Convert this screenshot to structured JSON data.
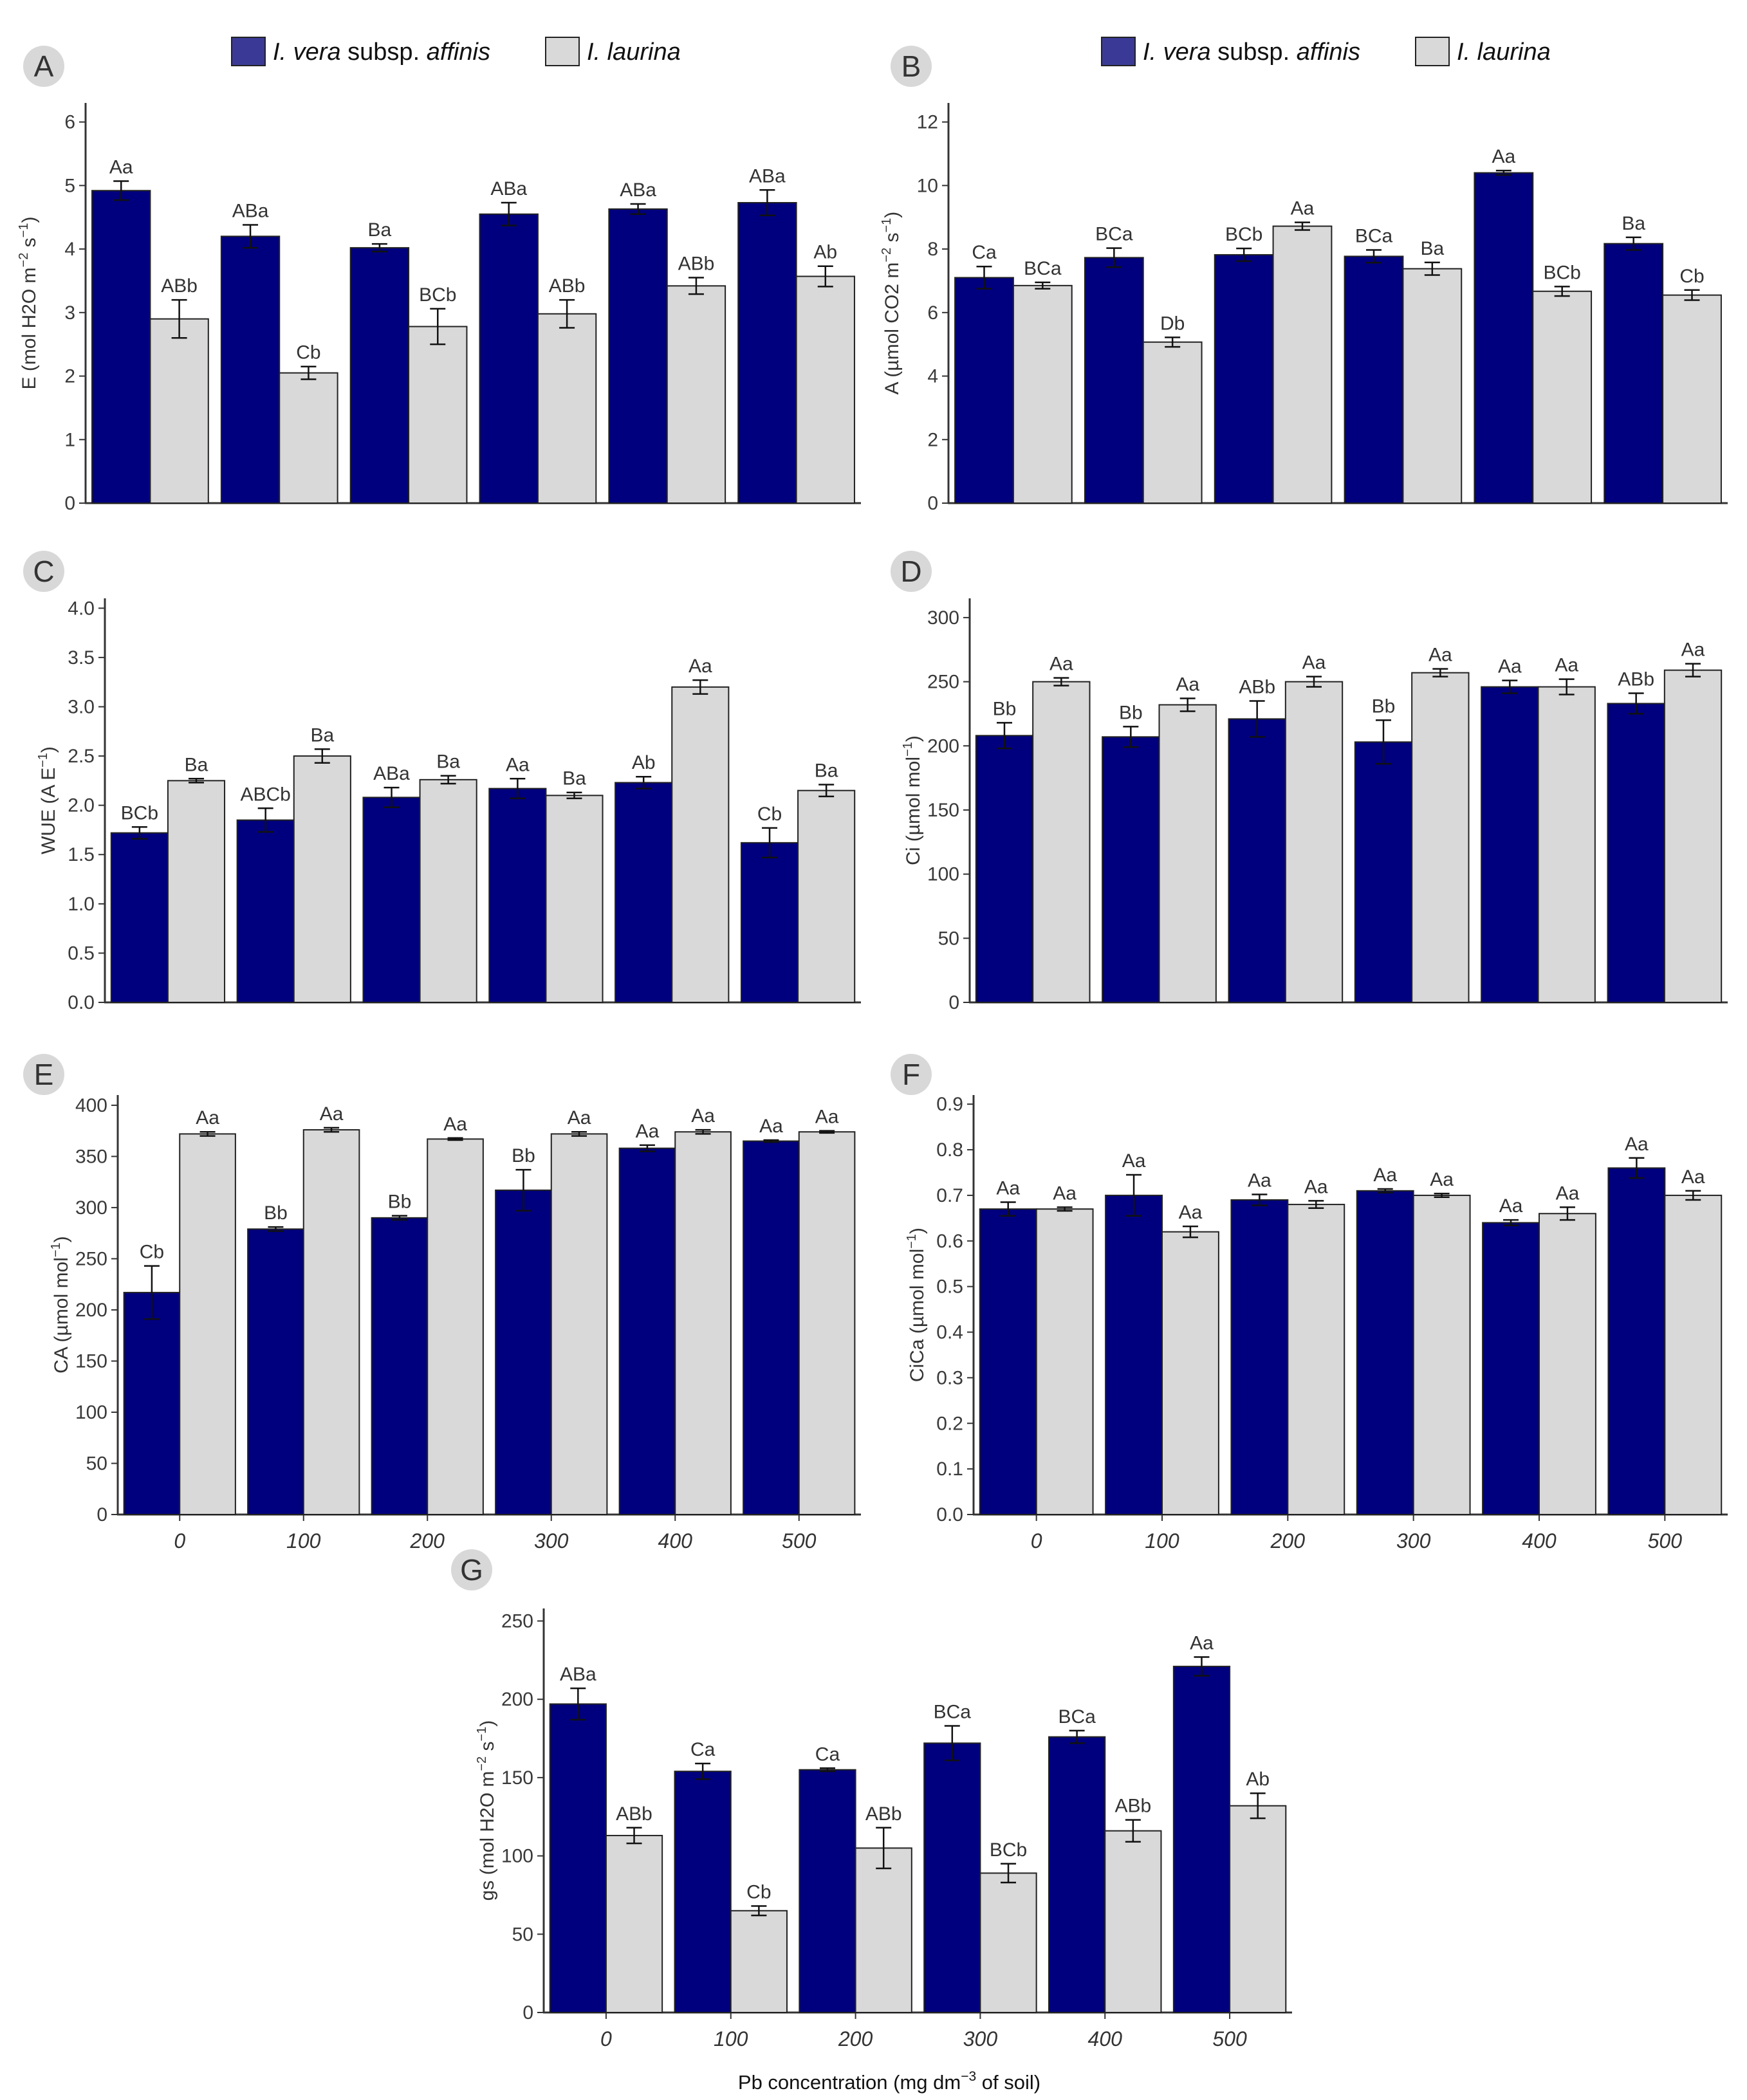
{
  "colors": {
    "vera": "#00007e",
    "laurina": "#d9d9d9",
    "legend_vera_swatch": "#3a3a96",
    "badge": "#d8d8d8"
  },
  "legend": {
    "vera_italic_1": "I. vera",
    "vera_plain": " subsp. ",
    "vera_italic_2": "affinis",
    "laurina": "I. laurina"
  },
  "x_axis_title": {
    "pre": "Pb concentration (mg dm",
    "sup": "−3",
    "post": " of soil)"
  },
  "chart_data": [
    {
      "id": "A",
      "type": "bar",
      "ylabel": {
        "pre": "E (mol H2O m",
        "sup1": "−2",
        "mid": " s",
        "sup2": "−1",
        "post": ")"
      },
      "ylim": [
        0,
        6.3
      ],
      "yticks": [
        "0",
        "1",
        "2",
        "3",
        "4",
        "5",
        "6"
      ],
      "ytick_values": [
        0,
        1,
        2,
        3,
        4,
        5,
        6
      ],
      "categories": [
        "0",
        "100",
        "200",
        "300",
        "400",
        "500"
      ],
      "show_xticks": false,
      "legend": true,
      "series": [
        {
          "name": "I. vera subsp. affinis",
          "values": [
            4.92,
            4.2,
            4.02,
            4.55,
            4.63,
            4.73
          ],
          "errors": [
            0.15,
            0.18,
            0.06,
            0.18,
            0.08,
            0.2
          ],
          "labels": [
            "Aa",
            "ABa",
            "Ba",
            "ABa",
            "ABa",
            "ABa"
          ]
        },
        {
          "name": "I. laurina",
          "values": [
            2.9,
            2.05,
            2.78,
            2.98,
            3.42,
            3.57
          ],
          "errors": [
            0.3,
            0.1,
            0.28,
            0.22,
            0.13,
            0.16
          ],
          "labels": [
            "ABb",
            "Cb",
            "BCb",
            "ABb",
            "ABb",
            "Ab"
          ]
        }
      ]
    },
    {
      "id": "B",
      "type": "bar",
      "ylabel": {
        "pre": "A (µmol CO2 m",
        "sup1": "−2",
        "mid": " s",
        "sup2": "−1",
        "post": ")"
      },
      "ylim": [
        0,
        12.6
      ],
      "yticks": [
        "0",
        "2",
        "4",
        "6",
        "8",
        "10",
        "12"
      ],
      "ytick_values": [
        0,
        2,
        4,
        6,
        8,
        10,
        12
      ],
      "categories": [
        "0",
        "100",
        "200",
        "300",
        "400",
        "500"
      ],
      "show_xticks": false,
      "legend": true,
      "series": [
        {
          "name": "I. vera subsp. affinis",
          "values": [
            7.1,
            7.73,
            7.82,
            7.77,
            10.4,
            8.17
          ],
          "errors": [
            0.35,
            0.3,
            0.2,
            0.2,
            0.07,
            0.2
          ],
          "labels": [
            "Ca",
            "BCa",
            "BCb",
            "BCa",
            "Aa",
            "Ba"
          ]
        },
        {
          "name": "I. laurina",
          "values": [
            6.85,
            5.07,
            8.72,
            7.38,
            6.67,
            6.55
          ],
          "errors": [
            0.1,
            0.15,
            0.12,
            0.2,
            0.15,
            0.16
          ],
          "labels": [
            "BCa",
            "Db",
            "Aa",
            "Ba",
            "BCb",
            "Cb"
          ]
        }
      ]
    },
    {
      "id": "C",
      "type": "bar",
      "ylabel": {
        "pre": "WUE (A E",
        "sup1": "−1",
        "mid": "",
        "sup2": "",
        "post": ")"
      },
      "ylim": [
        0,
        4.1
      ],
      "yticks": [
        "0.0",
        "0.5",
        "1.0",
        "1.5",
        "2.0",
        "2.5",
        "3.0",
        "3.5",
        "4.0"
      ],
      "ytick_values": [
        0,
        0.5,
        1,
        1.5,
        2,
        2.5,
        3,
        3.5,
        4
      ],
      "categories": [
        "0",
        "100",
        "200",
        "300",
        "400",
        "500"
      ],
      "show_xticks": false,
      "legend": false,
      "series": [
        {
          "name": "I. vera subsp. affinis",
          "values": [
            1.72,
            1.85,
            2.08,
            2.17,
            2.23,
            1.62
          ],
          "errors": [
            0.06,
            0.12,
            0.1,
            0.1,
            0.06,
            0.15
          ],
          "labels": [
            "BCb",
            "ABCb",
            "ABa",
            "Aa",
            "Ab",
            "Cb"
          ]
        },
        {
          "name": "I. laurina",
          "values": [
            2.25,
            2.5,
            2.26,
            2.1,
            3.2,
            2.15
          ],
          "errors": [
            0.02,
            0.07,
            0.04,
            0.03,
            0.07,
            0.06
          ],
          "labels": [
            "Ba",
            "Ba",
            "Ba",
            "Ba",
            "Aa",
            "Ba"
          ]
        }
      ]
    },
    {
      "id": "D",
      "type": "bar",
      "ylabel": {
        "pre": "Ci (µmol mol",
        "sup1": "−1",
        "mid": "",
        "sup2": "",
        "post": ")"
      },
      "ylim": [
        0,
        315
      ],
      "yticks": [
        "0",
        "50",
        "100",
        "150",
        "200",
        "250",
        "300"
      ],
      "ytick_values": [
        0,
        50,
        100,
        150,
        200,
        250,
        300
      ],
      "categories": [
        "0",
        "100",
        "200",
        "300",
        "400",
        "500"
      ],
      "show_xticks": false,
      "legend": false,
      "series": [
        {
          "name": "I. vera subsp. affinis",
          "values": [
            208,
            207,
            221,
            203,
            246,
            233
          ],
          "errors": [
            10,
            8,
            14,
            17,
            5,
            8
          ],
          "labels": [
            "Bb",
            "Bb",
            "ABb",
            "Bb",
            "Aa",
            "ABb"
          ]
        },
        {
          "name": "I. laurina",
          "values": [
            250,
            232,
            250,
            257,
            246,
            259
          ],
          "errors": [
            3,
            5,
            4,
            3,
            6,
            5
          ],
          "labels": [
            "Aa",
            "Aa",
            "Aa",
            "Aa",
            "Aa",
            "Aa"
          ]
        }
      ]
    },
    {
      "id": "E",
      "type": "bar",
      "ylabel": {
        "pre": "CA (µmol mol",
        "sup1": "−1",
        "mid": "",
        "sup2": "",
        "post": ")"
      },
      "ylim": [
        0,
        410
      ],
      "yticks": [
        "0",
        "50",
        "100",
        "150",
        "200",
        "250",
        "300",
        "350",
        "400"
      ],
      "ytick_values": [
        0,
        50,
        100,
        150,
        200,
        250,
        300,
        350,
        400
      ],
      "categories": [
        "0",
        "100",
        "200",
        "300",
        "400",
        "500"
      ],
      "show_xticks": true,
      "legend": false,
      "series": [
        {
          "name": "I. vera subsp. affinis",
          "values": [
            217,
            279,
            290,
            317,
            358,
            365
          ],
          "errors": [
            26,
            2,
            2,
            20,
            3,
            1
          ],
          "labels": [
            "Cb",
            "Bb",
            "Bb",
            "Bb",
            "Aa",
            "Aa"
          ]
        },
        {
          "name": "I. laurina",
          "values": [
            372,
            376,
            367,
            372,
            374,
            374
          ],
          "errors": [
            2,
            2,
            1,
            2,
            2,
            1
          ],
          "labels": [
            "Aa",
            "Aa",
            "Aa",
            "Aa",
            "Aa",
            "Aa"
          ]
        }
      ]
    },
    {
      "id": "F",
      "type": "bar",
      "ylabel": {
        "pre": "CiCa (µmol mol",
        "sup1": "−1",
        "mid": "",
        "sup2": "",
        "post": ")"
      },
      "ylim": [
        0,
        0.92
      ],
      "yticks": [
        "0.0",
        "0.1",
        "0.2",
        "0.3",
        "0.4",
        "0.5",
        "0.6",
        "0.7",
        "0.8",
        "0.9"
      ],
      "ytick_values": [
        0,
        0.1,
        0.2,
        0.3,
        0.4,
        0.5,
        0.6,
        0.7,
        0.8,
        0.9
      ],
      "categories": [
        "0",
        "100",
        "200",
        "300",
        "400",
        "500"
      ],
      "show_xticks": true,
      "legend": false,
      "series": [
        {
          "name": "I. vera subsp. affinis",
          "values": [
            0.67,
            0.7,
            0.69,
            0.71,
            0.64,
            0.76
          ],
          "errors": [
            0.015,
            0.045,
            0.012,
            0.004,
            0.006,
            0.022
          ],
          "labels": [
            "Aa",
            "Aa",
            "Aa",
            "Aa",
            "Aa",
            "Aa"
          ]
        },
        {
          "name": "I. laurina",
          "values": [
            0.67,
            0.62,
            0.68,
            0.7,
            0.66,
            0.7
          ],
          "errors": [
            0.004,
            0.012,
            0.008,
            0.004,
            0.014,
            0.01
          ],
          "labels": [
            "Aa",
            "Aa",
            "Aa",
            "Aa",
            "Aa",
            "Aa"
          ]
        }
      ]
    },
    {
      "id": "G",
      "type": "bar",
      "ylabel": {
        "pre": "gs (mol H2O m",
        "sup1": "−2",
        "mid": " s",
        "sup2": "−1",
        "post": ")"
      },
      "ylim": [
        0,
        258
      ],
      "yticks": [
        "0",
        "50",
        "100",
        "150",
        "200",
        "250"
      ],
      "ytick_values": [
        0,
        50,
        100,
        150,
        200,
        250
      ],
      "categories": [
        "0",
        "100",
        "200",
        "300",
        "400",
        "500"
      ],
      "show_xticks": true,
      "legend": false,
      "series": [
        {
          "name": "I. vera subsp. affinis",
          "values": [
            197,
            154,
            155,
            172,
            176,
            221
          ],
          "errors": [
            10,
            5,
            1,
            11,
            4,
            6
          ],
          "labels": [
            "ABa",
            "Ca",
            "Ca",
            "BCa",
            "BCa",
            "Aa"
          ]
        },
        {
          "name": "I. laurina",
          "values": [
            113,
            65,
            105,
            89,
            116,
            132
          ],
          "errors": [
            5,
            3,
            13,
            6,
            7,
            8
          ],
          "labels": [
            "ABb",
            "Cb",
            "ABb",
            "BCb",
            "ABb",
            "Ab"
          ]
        }
      ]
    }
  ]
}
